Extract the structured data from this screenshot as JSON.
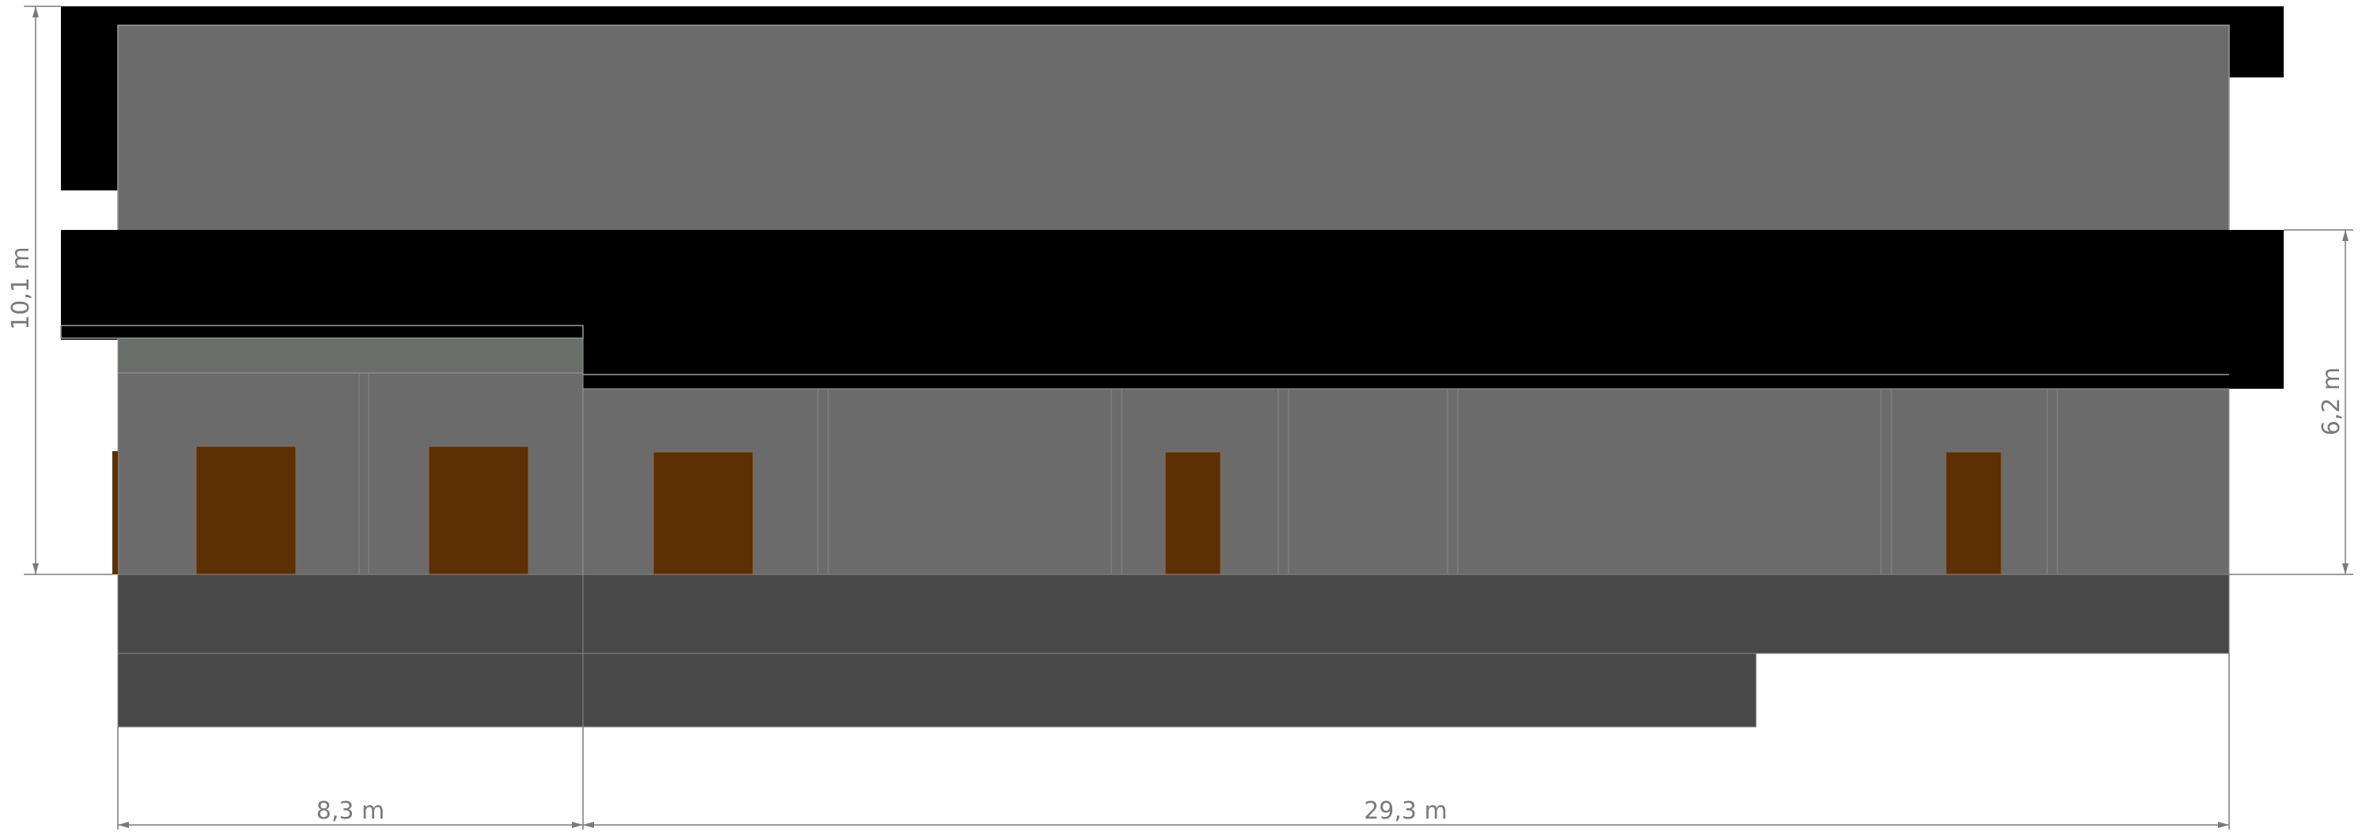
{
  "colors": {
    "roof": "#000000",
    "wall": "#6b6b6b",
    "wall_upper_band": "#6a6e6a",
    "terrace": "#484848",
    "door": "#5c2f04",
    "line": "#9a9a9a",
    "dimension": "#7a7a7a",
    "background": "#ffffff"
  },
  "dimensions": {
    "height_total": "10,1  m",
    "height_lower": "6,2  m",
    "width_left": "8,3  m",
    "width_right": "29,3  m"
  },
  "doors": [
    {
      "name": "door-1"
    },
    {
      "name": "door-2"
    },
    {
      "name": "door-3"
    },
    {
      "name": "door-4"
    },
    {
      "name": "door-5"
    }
  ]
}
